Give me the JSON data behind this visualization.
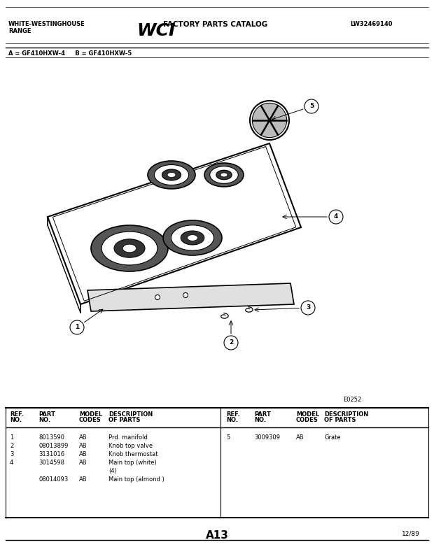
{
  "title_left_1": "WHITE-WESTINGHOUSE",
  "title_left_2": "RANGE",
  "title_center": "FACTORY PARTS CATALOG",
  "title_right": "LW32469140",
  "model_line": "A = GF410HXW-4     B = GF410HXW-5",
  "diagram_code": "E0252",
  "page_label": "A13",
  "page_date": "12/89",
  "parts_left": [
    {
      "ref": "1",
      "part": "8013590",
      "codes": "AB",
      "desc": "Prd. manifold"
    },
    {
      "ref": "2",
      "part": "08013899",
      "codes": "AB",
      "desc": "Knob top valve"
    },
    {
      "ref": "3",
      "part": "3131016",
      "codes": "AB",
      "desc": "Knob thermostat"
    },
    {
      "ref": "4",
      "part": "3014598",
      "codes": "AB",
      "desc": "Main top (white)"
    },
    {
      "ref": "",
      "part": "",
      "codes": "",
      "desc": "(4)"
    },
    {
      "ref": "",
      "part": "08014093",
      "codes": "AB",
      "desc": "Main top (almond )"
    }
  ],
  "parts_right": [
    {
      "ref": "5",
      "part": "3009309",
      "codes": "AB",
      "desc": "Grate"
    }
  ]
}
